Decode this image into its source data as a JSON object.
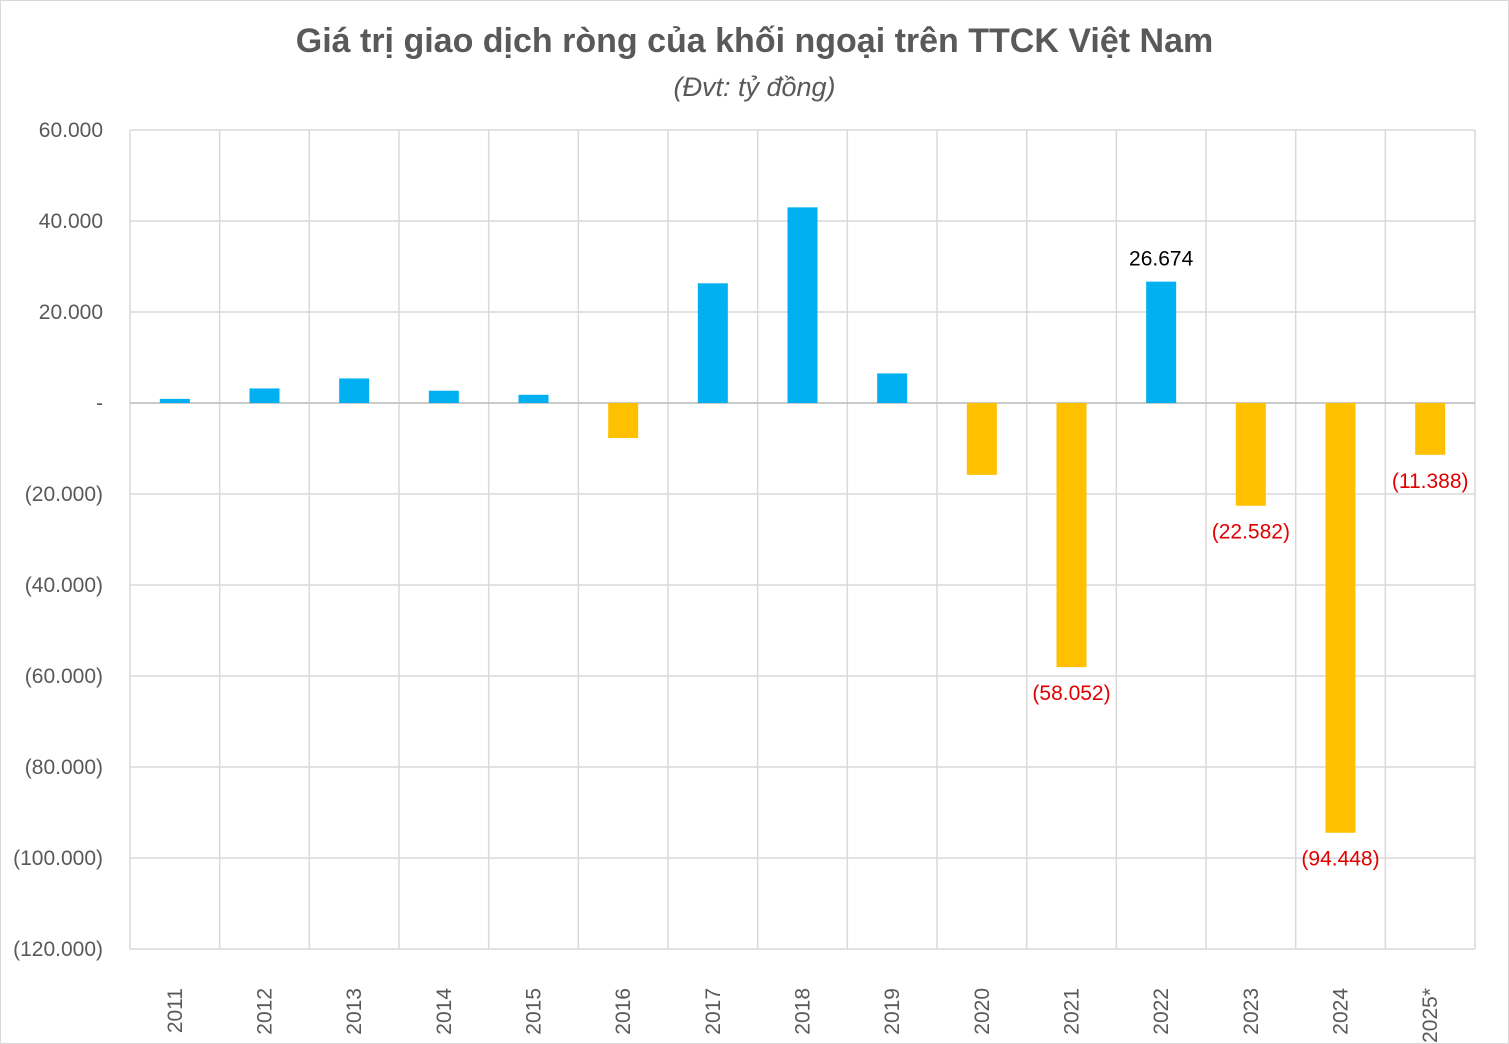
{
  "chart_data": {
    "type": "bar",
    "title": "Giá trị giao dịch ròng của khối ngoại trên TTCK Việt Nam",
    "subtitle": "(Đvt: tỷ đồng)",
    "xlabel": "",
    "ylabel": "",
    "categories": [
      "2011",
      "2012",
      "2013",
      "2014",
      "2015",
      "2016",
      "2017",
      "2018",
      "2019",
      "2020",
      "2021",
      "2022",
      "2023",
      "2024",
      "2025*"
    ],
    "values": [
      900,
      3200,
      5400,
      2700,
      1800,
      -7700,
      26300,
      43000,
      6500,
      -15800,
      -58052,
      26674,
      -22582,
      -94448,
      -11388
    ],
    "data_labels": {
      "2021": "(58.052)",
      "2022": "26.674",
      "2023": "(22.582)",
      "2024": "(94.448)",
      "2025*": "(11.388)"
    },
    "ylim": [
      -120000,
      60000
    ],
    "yticks": [
      60000,
      40000,
      20000,
      0,
      -20000,
      -40000,
      -60000,
      -80000,
      -100000,
      -120000
    ],
    "ytick_labels": [
      "60.000",
      "40.000",
      "20.000",
      "-",
      "(20.000)",
      "(40.000)",
      "(60.000)",
      "(80.000)",
      "(100.000)",
      "(120.000)"
    ],
    "grid": true,
    "colors": {
      "positive": "#00b0f0",
      "negative": "#ffc000",
      "negative_label": "#e00000",
      "grid": "#d9d9d9",
      "text": "#595959"
    }
  }
}
